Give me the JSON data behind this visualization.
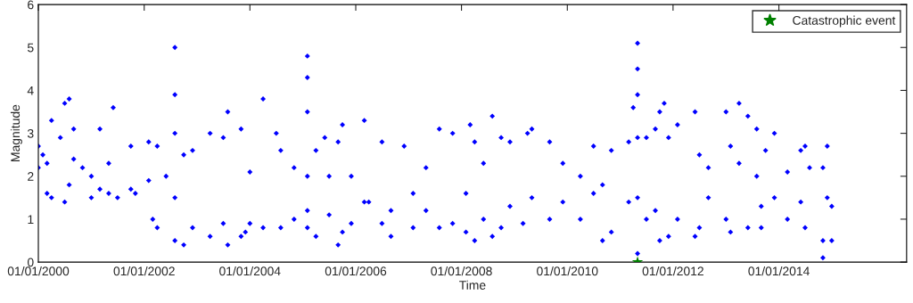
{
  "chart_data": {
    "type": "scatter",
    "xlabel": "Time",
    "ylabel": "Magnitude",
    "xlim": [
      "2000-01-01",
      "2016-06-01"
    ],
    "xticks": [
      {
        "value": "2000-01-01",
        "label": "01/01/2000"
      },
      {
        "value": "2002-01-01",
        "label": "01/01/2002"
      },
      {
        "value": "2004-01-01",
        "label": "01/01/2004"
      },
      {
        "value": "2006-01-01",
        "label": "01/01/2006"
      },
      {
        "value": "2008-01-01",
        "label": "01/01/2008"
      },
      {
        "value": "2010-01-01",
        "label": "01/01/2010"
      },
      {
        "value": "2012-01-01",
        "label": "01/01/2012"
      },
      {
        "value": "2014-01-01",
        "label": "01/01/2014"
      }
    ],
    "ylim": [
      0,
      6
    ],
    "yticks": [
      0,
      1,
      2,
      3,
      4,
      5,
      6
    ],
    "grid": false,
    "legend": "top right",
    "series": [
      {
        "color": "#0000ff",
        "marker": "diamond",
        "x": [
          "2000-01",
          "2000-01",
          "2000-02",
          "2000-03",
          "2000-03",
          "2000-04",
          "2000-04",
          "2000-06",
          "2000-07",
          "2000-07",
          "2000-08",
          "2000-08",
          "2000-09",
          "2000-09",
          "2000-11",
          "2001-01",
          "2001-01",
          "2001-03",
          "2001-03",
          "2001-05",
          "2001-05",
          "2001-06",
          "2001-07",
          "2001-10",
          "2001-10",
          "2001-11",
          "2002-02",
          "2002-02",
          "2002-03",
          "2002-04",
          "2002-04",
          "2002-06",
          "2002-08",
          "2002-08",
          "2002-08",
          "2002-08",
          "2002-08",
          "2002-10",
          "2002-10",
          "2002-12",
          "2002-12",
          "2003-04",
          "2003-04",
          "2003-07",
          "2003-07",
          "2003-08",
          "2003-08",
          "2003-11",
          "2003-11",
          "2003-12",
          "2004-01",
          "2004-01",
          "2004-04",
          "2004-04",
          "2004-07",
          "2004-08",
          "2004-08",
          "2004-11",
          "2004-11",
          "2005-02",
          "2005-02",
          "2005-02",
          "2005-02",
          "2005-02",
          "2005-02",
          "2005-04",
          "2005-04",
          "2005-06",
          "2005-07",
          "2005-07",
          "2005-09",
          "2005-09",
          "2005-10",
          "2005-10",
          "2005-12",
          "2005-12",
          "2006-03",
          "2006-03",
          "2006-04",
          "2006-07",
          "2006-07",
          "2006-09",
          "2006-09",
          "2006-12",
          "2007-02",
          "2007-02",
          "2007-05",
          "2007-05",
          "2007-08",
          "2007-08",
          "2007-11",
          "2007-11",
          "2008-02",
          "2008-02",
          "2008-03",
          "2008-04",
          "2008-04",
          "2008-06",
          "2008-06",
          "2008-08",
          "2008-08",
          "2008-10",
          "2008-10",
          "2008-12",
          "2008-12",
          "2009-03",
          "2009-04",
          "2009-05",
          "2009-05",
          "2009-09",
          "2009-09",
          "2009-12",
          "2009-12",
          "2010-04",
          "2010-04",
          "2010-07",
          "2010-07",
          "2010-09",
          "2010-09",
          "2010-11",
          "2010-11",
          "2011-03",
          "2011-03",
          "2011-04",
          "2011-05",
          "2011-05",
          "2011-05",
          "2011-05",
          "2011-05",
          "2011-05",
          "2011-07",
          "2011-07",
          "2011-09",
          "2011-09",
          "2011-10",
          "2011-10",
          "2011-11",
          "2011-12",
          "2011-12",
          "2012-02",
          "2012-02",
          "2012-06",
          "2012-06",
          "2012-07",
          "2012-07",
          "2012-09",
          "2012-09",
          "2013-01",
          "2013-01",
          "2013-02",
          "2013-02",
          "2013-04",
          "2013-04",
          "2013-06",
          "2013-06",
          "2013-08",
          "2013-08",
          "2013-09",
          "2013-09",
          "2013-10",
          "2013-12",
          "2013-12",
          "2014-03",
          "2014-03",
          "2014-06",
          "2014-06",
          "2014-07",
          "2014-07",
          "2014-08",
          "2014-11",
          "2014-11",
          "2014-11",
          "2014-12",
          "2014-12",
          "2015-01",
          "2015-01"
        ],
        "values": [
          2.2,
          2.7,
          2.5,
          1.6,
          2.3,
          3.3,
          1.5,
          2.9,
          3.7,
          1.4,
          3.8,
          1.8,
          3.1,
          2.4,
          2.2,
          1.5,
          2.0,
          3.1,
          1.7,
          2.3,
          1.6,
          3.6,
          1.5,
          2.7,
          1.7,
          1.6,
          2.8,
          1.9,
          1.0,
          2.7,
          0.8,
          2.0,
          5.0,
          3.9,
          3.0,
          0.5,
          1.5,
          0.4,
          2.5,
          2.6,
          0.8,
          3.0,
          0.6,
          2.9,
          0.9,
          3.5,
          0.4,
          3.1,
          0.6,
          0.7,
          0.9,
          2.1,
          3.8,
          0.8,
          3.0,
          2.6,
          0.8,
          1.0,
          2.2,
          4.8,
          4.3,
          3.5,
          0.8,
          2.0,
          1.2,
          0.6,
          2.6,
          2.9,
          2.0,
          1.1,
          2.8,
          0.4,
          3.2,
          0.7,
          0.9,
          2.0,
          3.3,
          1.4,
          1.4,
          2.8,
          0.9,
          0.6,
          1.2,
          2.7,
          0.8,
          1.6,
          2.2,
          1.2,
          3.1,
          0.8,
          3.0,
          0.9,
          0.7,
          1.6,
          3.2,
          0.5,
          2.8,
          2.3,
          1.0,
          3.4,
          0.6,
          2.9,
          0.8,
          2.8,
          1.3,
          0.9,
          3.0,
          3.1,
          1.5,
          2.8,
          1.0,
          1.4,
          2.3,
          1.0,
          2.0,
          2.7,
          1.6,
          0.5,
          1.8,
          2.6,
          0.7,
          2.8,
          1.4,
          3.6,
          5.1,
          4.5,
          3.9,
          2.9,
          0.2,
          1.5,
          2.9,
          1.0,
          3.1,
          1.2,
          3.5,
          0.5,
          3.7,
          2.9,
          0.6,
          3.2,
          1.0,
          3.5,
          0.6,
          2.5,
          0.8,
          2.2,
          1.5,
          3.5,
          1.0,
          0.7,
          2.7,
          3.7,
          2.3,
          3.4,
          0.8,
          3.1,
          2.0,
          0.8,
          1.3,
          2.6,
          3.0,
          1.5,
          1.0,
          2.1,
          2.6,
          1.4,
          2.7,
          0.8,
          2.2,
          2.2,
          0.1,
          0.5,
          2.7,
          1.5,
          0.5,
          1.3
        ]
      },
      {
        "name": "Catastrophic event",
        "color": "#008000",
        "marker": "star",
        "x": [
          "2011-05"
        ],
        "values": [
          0
        ]
      }
    ]
  }
}
